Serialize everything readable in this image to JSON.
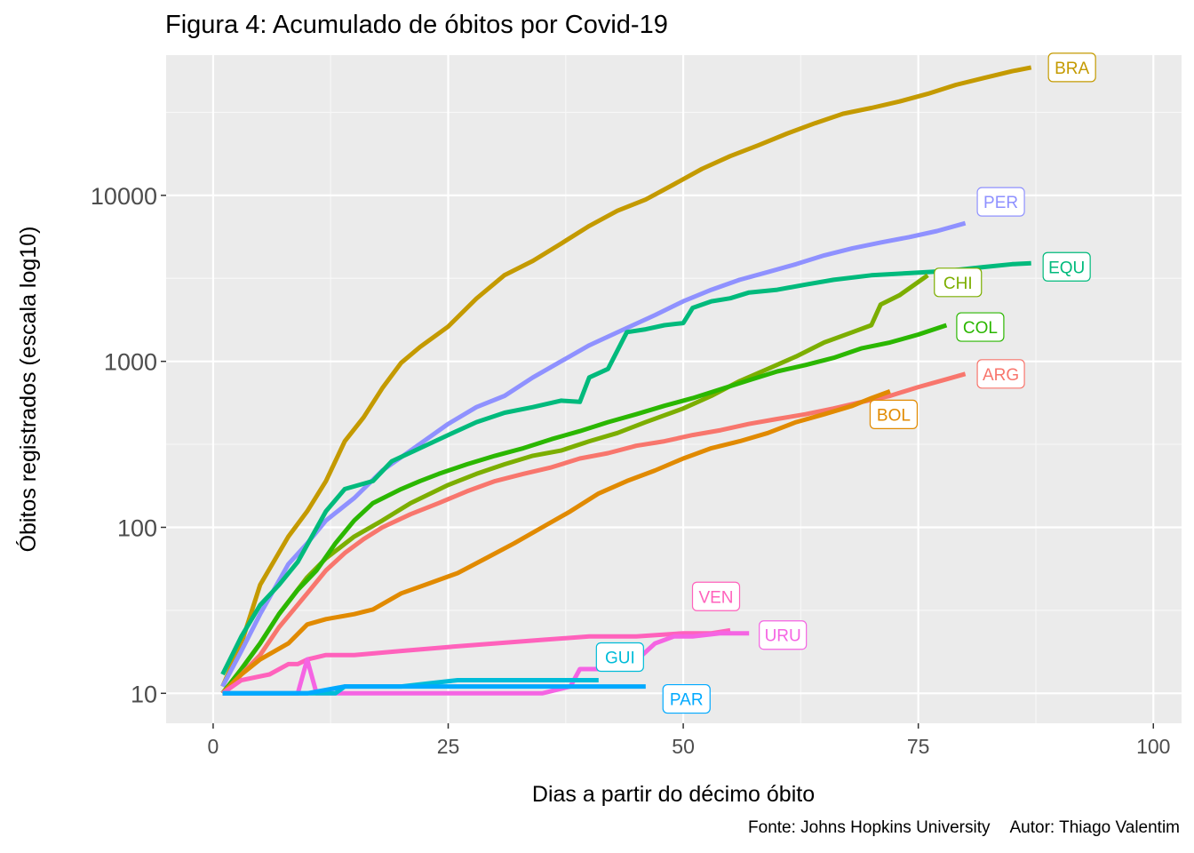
{
  "chart_data": {
    "type": "line",
    "title": "Figura 4: Acumulado de óbitos por Covid-19",
    "xlabel": "Dias a partir do décimo óbito",
    "ylabel": "Óbitos registrados (escala log10)",
    "caption_source": "Fonte: Johns Hopkins University",
    "caption_author": "Autor: Thiago Valentim",
    "x_ticks": [
      0,
      25,
      50,
      75,
      100
    ],
    "y_ticks": [
      10,
      100,
      1000,
      10000
    ],
    "y_scale": "log10",
    "xlim": [
      -5,
      103
    ],
    "ylim": [
      6.6,
      70000
    ],
    "grid": true,
    "legend": "none (direct labels)",
    "series": [
      {
        "name": "BRA",
        "color": "#C49A00",
        "x": [
          1,
          3,
          5,
          8,
          10,
          12,
          14,
          16,
          18,
          20,
          22,
          25,
          28,
          31,
          34,
          37,
          40,
          43,
          46,
          49,
          52,
          55,
          58,
          61,
          64,
          67,
          70,
          73,
          76,
          79,
          82,
          85,
          87
        ],
        "y": [
          11,
          20,
          45,
          88,
          125,
          190,
          330,
          460,
          690,
          980,
          1220,
          1620,
          2390,
          3310,
          4030,
          5120,
          6540,
          8080,
          9430,
          11650,
          14450,
          17240,
          20060,
          23520,
          27200,
          31040,
          33600,
          36800,
          40920,
          46310,
          51000,
          56000,
          59000
        ]
      },
      {
        "name": "PER",
        "color": "#8F91FF",
        "x": [
          1,
          3,
          5,
          8,
          10,
          12,
          15,
          18,
          21,
          25,
          28,
          31,
          34,
          37,
          40,
          44,
          47,
          50,
          53,
          56,
          59,
          62,
          65,
          68,
          71,
          74,
          77,
          80
        ],
        "y": [
          11,
          18,
          30,
          60,
          80,
          110,
          150,
          220,
          290,
          420,
          530,
          620,
          800,
          1000,
          1250,
          1590,
          1900,
          2300,
          2700,
          3100,
          3450,
          3850,
          4350,
          4800,
          5200,
          5600,
          6100,
          6800
        ]
      },
      {
        "name": "EQU",
        "color": "#00BA7C",
        "x": [
          1,
          3,
          5,
          7,
          9,
          12,
          14,
          17,
          19,
          22,
          25,
          28,
          31,
          34,
          37,
          39,
          40,
          42,
          44,
          46,
          48,
          50,
          51,
          53,
          55,
          57,
          60,
          63,
          66,
          70,
          74,
          78,
          82,
          85,
          87
        ],
        "y": [
          13,
          22,
          34,
          45,
          62,
          125,
          170,
          190,
          250,
          300,
          360,
          430,
          490,
          530,
          580,
          570,
          800,
          900,
          1500,
          1560,
          1650,
          1700,
          2100,
          2300,
          2400,
          2600,
          2700,
          2900,
          3100,
          3300,
          3400,
          3500,
          3700,
          3850,
          3900
        ]
      },
      {
        "name": "CHI",
        "color": "#7CAE00",
        "x": [
          1,
          3,
          5,
          7,
          10,
          12,
          15,
          18,
          21,
          25,
          28,
          31,
          34,
          37,
          40,
          43,
          46,
          50,
          53,
          56,
          59,
          62,
          65,
          68,
          70,
          71,
          73,
          76
        ],
        "y": [
          10,
          14,
          20,
          30,
          50,
          65,
          88,
          110,
          140,
          180,
          210,
          240,
          270,
          290,
          330,
          370,
          430,
          520,
          620,
          760,
          900,
          1070,
          1300,
          1500,
          1650,
          2200,
          2500,
          3300
        ]
      },
      {
        "name": "COL",
        "color": "#2BB700",
        "x": [
          1,
          3,
          5,
          7,
          9,
          11,
          13,
          15,
          17,
          20,
          22,
          24,
          27,
          30,
          33,
          36,
          39,
          42,
          45,
          48,
          51,
          54,
          57,
          60,
          63,
          66,
          69,
          72,
          75,
          78
        ],
        "y": [
          10,
          14,
          20,
          30,
          42,
          55,
          80,
          110,
          140,
          170,
          190,
          210,
          240,
          270,
          300,
          340,
          380,
          430,
          480,
          540,
          600,
          680,
          770,
          870,
          950,
          1050,
          1200,
          1300,
          1450,
          1650
        ]
      },
      {
        "name": "ARG",
        "color": "#F8766D",
        "x": [
          1,
          3,
          5,
          7,
          10,
          12,
          14,
          16,
          18,
          21,
          24,
          27,
          30,
          33,
          36,
          39,
          42,
          45,
          48,
          51,
          54,
          57,
          60,
          63,
          66,
          69,
          72,
          75,
          78,
          80
        ],
        "y": [
          10,
          13,
          17,
          25,
          40,
          55,
          70,
          85,
          100,
          120,
          140,
          165,
          190,
          210,
          230,
          260,
          280,
          310,
          330,
          360,
          385,
          420,
          450,
          480,
          520,
          570,
          620,
          700,
          780,
          840
        ]
      },
      {
        "name": "BOL",
        "color": "#E18A00",
        "x": [
          1,
          3,
          5,
          8,
          10,
          12,
          15,
          17,
          20,
          23,
          26,
          29,
          32,
          35,
          38,
          41,
          44,
          47,
          50,
          53,
          56,
          59,
          62,
          65,
          68,
          70,
          72
        ],
        "y": [
          10,
          13,
          16,
          20,
          26,
          28,
          30,
          32,
          40,
          46,
          53,
          65,
          80,
          100,
          125,
          160,
          190,
          220,
          260,
          300,
          330,
          370,
          430,
          480,
          540,
          600,
          660
        ]
      },
      {
        "name": "VEN",
        "color": "#FF62BC",
        "x": [
          1,
          3,
          6,
          8,
          9,
          10,
          12,
          15,
          20,
          25,
          30,
          35,
          40,
          45,
          50,
          52,
          53,
          55
        ],
        "y": [
          10,
          12,
          13,
          15,
          15,
          16,
          17,
          17,
          18,
          19,
          20,
          21,
          22,
          22,
          23,
          23,
          23,
          24
        ]
      },
      {
        "name": "URU",
        "color": "#F564E3",
        "x": [
          1,
          5,
          9,
          10,
          11,
          14,
          20,
          25,
          30,
          35,
          38,
          39,
          40,
          44,
          47,
          49,
          51,
          54,
          57
        ],
        "y": [
          10,
          10,
          10,
          16,
          10,
          10,
          10,
          10,
          10,
          10,
          11,
          14,
          14,
          14,
          20,
          22,
          22,
          23,
          23
        ]
      },
      {
        "name": "GUI",
        "color": "#00BCD8",
        "x": [
          1,
          5,
          10,
          13,
          14,
          20,
          26,
          30,
          35,
          41
        ],
        "y": [
          10,
          10,
          10,
          10,
          11,
          11,
          12,
          12,
          12,
          12
        ]
      },
      {
        "name": "PAR",
        "color": "#00A9FF",
        "x": [
          1,
          5,
          10,
          14,
          20,
          26,
          30,
          35,
          40,
          46
        ],
        "y": [
          10,
          10,
          10,
          11,
          11,
          11,
          11,
          11,
          11,
          11
        ]
      }
    ]
  }
}
